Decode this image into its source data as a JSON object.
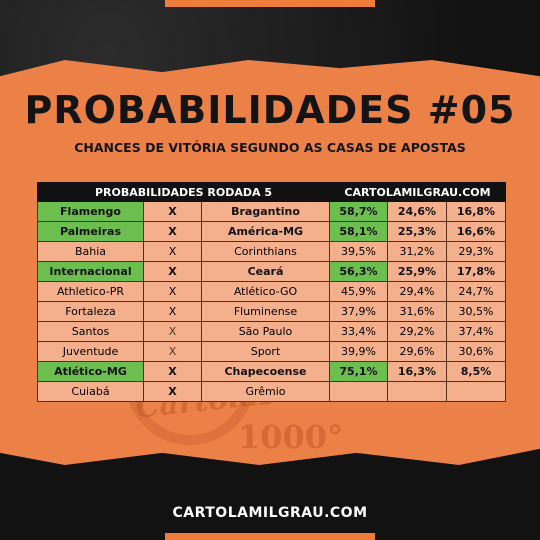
{
  "title": "PROBABILIDADES #05",
  "subtitle": "CHANCES DE VITÓRIA SEGUNDO AS CASAS DE APOSTAS",
  "table": {
    "header_left": "PROBABILIDADES RODADA 5",
    "header_right": "CARTOLAMILGRAU.COM",
    "rows": [
      {
        "home": "Flamengo",
        "x": "X",
        "away": "Bragantino",
        "p1": "58,7%",
        "p2": "24,6%",
        "p3": "16,8%"
      },
      {
        "home": "Palmeiras",
        "x": "X",
        "away": "América-MG",
        "p1": "58,1%",
        "p2": "25,3%",
        "p3": "16,6%"
      },
      {
        "home": "Bahia",
        "x": "X",
        "away": "Corinthians",
        "p1": "39,5%",
        "p2": "31,2%",
        "p3": "29,3%"
      },
      {
        "home": "Internacional",
        "x": "X",
        "away": "Ceará",
        "p1": "56,3%",
        "p2": "25,9%",
        "p3": "17,8%"
      },
      {
        "home": "Athletico-PR",
        "x": "X",
        "away": "Atlético-GO",
        "p1": "45,9%",
        "p2": "29,4%",
        "p3": "24,7%"
      },
      {
        "home": "Fortaleza",
        "x": "X",
        "away": "Fluminense",
        "p1": "37,9%",
        "p2": "31,6%",
        "p3": "30,5%"
      },
      {
        "home": "Santos",
        "x": "X",
        "away": "São Paulo",
        "p1": "33,4%",
        "p2": "29,2%",
        "p3": "37,4%"
      },
      {
        "home": "Juventude",
        "x": "X",
        "away": "Sport",
        "p1": "39,9%",
        "p2": "29,6%",
        "p3": "30,6%"
      },
      {
        "home": "Atlético-MG",
        "x": "X",
        "away": "Chapecoense",
        "p1": "75,1%",
        "p2": "16,3%",
        "p3": "8,5%"
      },
      {
        "home": "Cuiabá",
        "x": "X",
        "away": "Grêmio",
        "p1": "",
        "p2": "",
        "p3": ""
      }
    ]
  },
  "watermark": {
    "logo_text": "CartolaFC",
    "number": "1000°"
  },
  "footer": "CARTOLAMILGRAU.COM",
  "colors": {
    "orange": "#ec8148",
    "green": "#6cbf4e",
    "cell": "#f4b08c",
    "dark": "#151515"
  }
}
